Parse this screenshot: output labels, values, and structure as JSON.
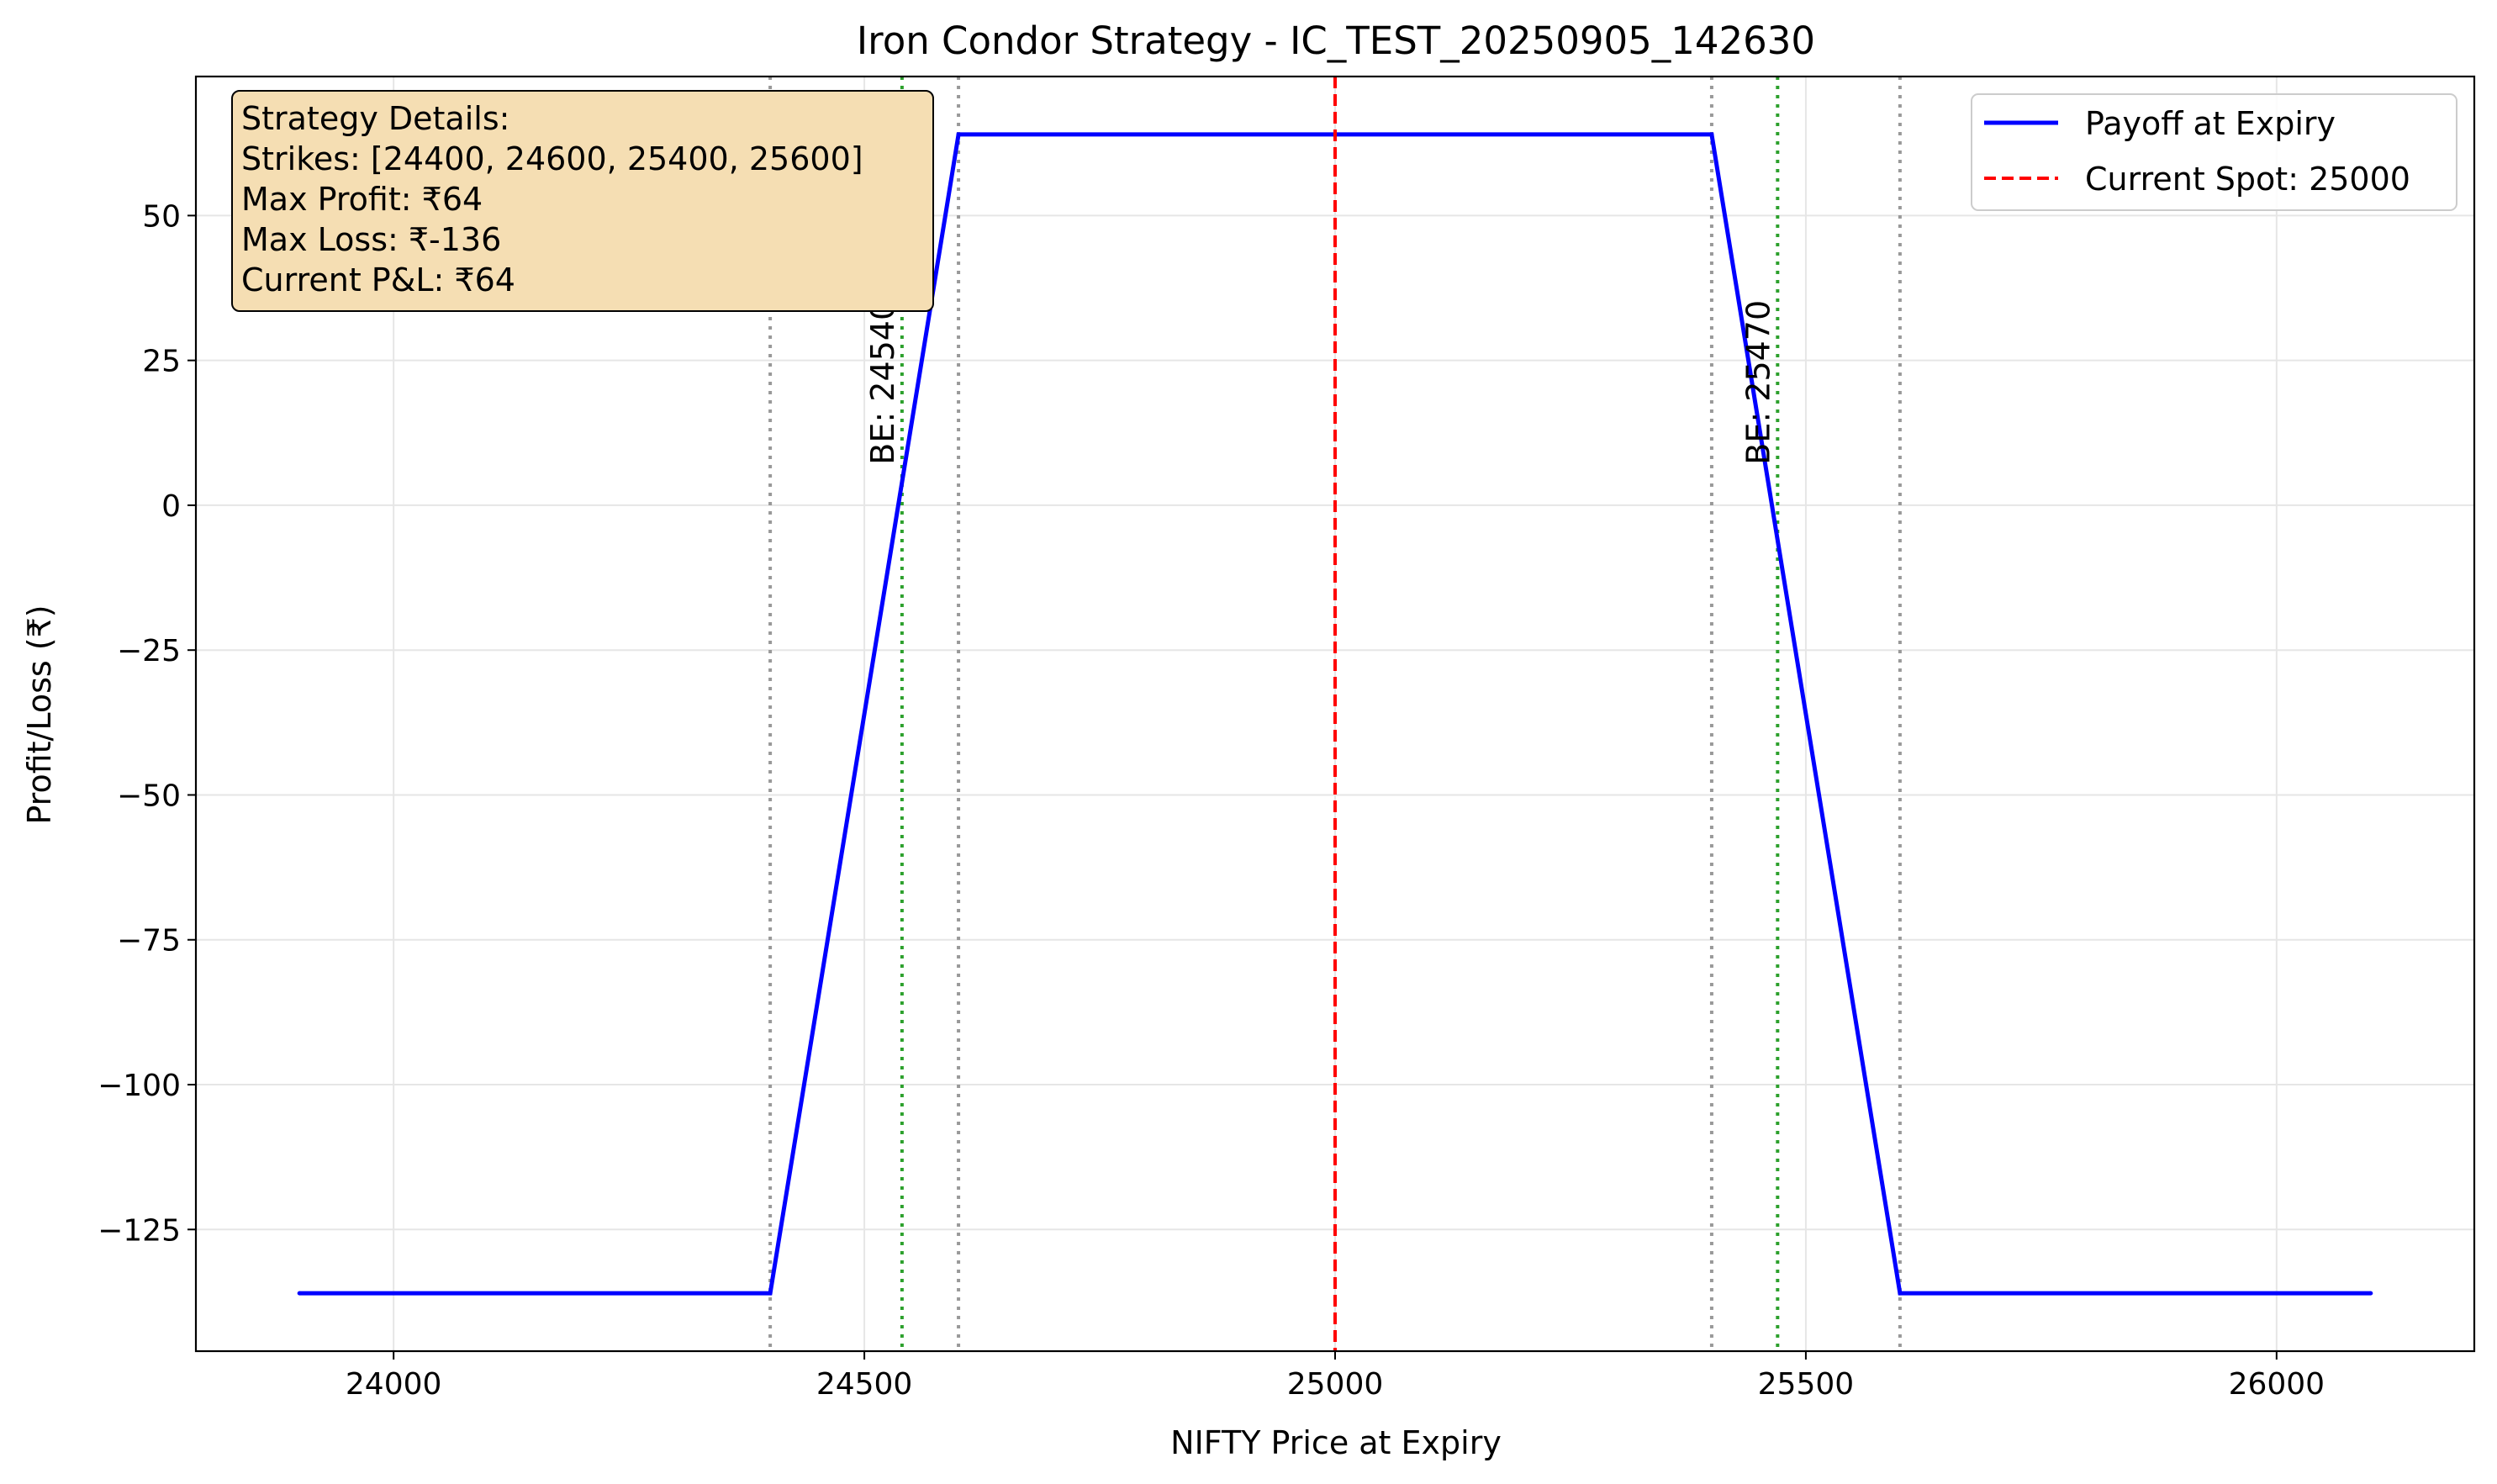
{
  "chart_data": {
    "type": "line",
    "title": "Iron Condor Strategy - IC_TEST_20250905_142630",
    "xlabel": "NIFTY Price at Expiry",
    "ylabel": "Profit/Loss (₹)",
    "xlim": [
      23790,
      26210
    ],
    "ylim": [
      -146,
      74
    ],
    "xticks": [
      24000,
      24500,
      25000,
      25500,
      26000
    ],
    "xtick_labels": [
      "24000",
      "24500",
      "25000",
      "25500",
      "26000"
    ],
    "yticks": [
      50,
      25,
      0,
      -25,
      -50,
      -75,
      -100,
      -125
    ],
    "ytick_labels": [
      "50",
      "25",
      "0",
      "−25",
      "−50",
      "−75",
      "−100",
      "−125"
    ],
    "grid": true,
    "series": [
      {
        "name": "Payoff at Expiry",
        "color": "#0000ff",
        "style": "solid",
        "x": [
          23900,
          24400,
          24600,
          25400,
          25600,
          26100
        ],
        "y": [
          -136,
          -136,
          64,
          64,
          -136,
          -136
        ]
      }
    ],
    "spot_line": {
      "x": 25000,
      "color": "#ff0000",
      "style": "dashed",
      "legend": "Current Spot: 25000"
    },
    "strike_lines": {
      "x": [
        24400,
        24600,
        25400,
        25600
      ],
      "color": "#999999",
      "style": "dotted"
    },
    "breakeven_lines": {
      "x": [
        24540,
        25470
      ],
      "labels": [
        "BE: 24540",
        "BE: 25470"
      ],
      "color": "#2ca02c",
      "style": "dotted",
      "label_y": 7
    },
    "legend": {
      "position": "top-right",
      "entries": [
        {
          "label": "Payoff at Expiry",
          "color": "#0000ff",
          "style": "solid"
        },
        {
          "label": "Current Spot: 25000",
          "color": "#ff0000",
          "style": "dashed"
        }
      ]
    },
    "info_box": {
      "position": "top-left",
      "background": "#f5deb3",
      "lines": [
        "Strategy Details:",
        "Strikes: [24400, 24600, 25400, 25600]",
        "Max Profit: ₹64",
        "Max Loss: ₹-136",
        "Current P&L: ₹64"
      ]
    }
  }
}
